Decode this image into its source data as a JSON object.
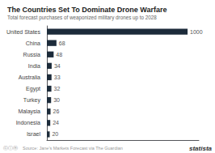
{
  "chart_data": {
    "type": "bar",
    "orientation": "horizontal",
    "title": "The Countries Set To Dominate Drone Warfare",
    "subtitle": "Total forecast purchases of weaponized military drones up to 2028",
    "categories": [
      "United States",
      "China",
      "Russia",
      "India",
      "Australia",
      "Egypt",
      "Turkey",
      "Malaysia",
      "Indonesia",
      "Israel"
    ],
    "values": [
      1000,
      68,
      48,
      34,
      33,
      32,
      30,
      26,
      24,
      20
    ],
    "color": "#1c2b3a",
    "xlim": [
      0,
      1080
    ],
    "grid": false,
    "data_labels": true,
    "tick_labels": "y",
    "annotations": [
      "ⓒⓘⓔ",
      "Source: Jane's Markets Forecast via The Guardian",
      "statista"
    ]
  }
}
